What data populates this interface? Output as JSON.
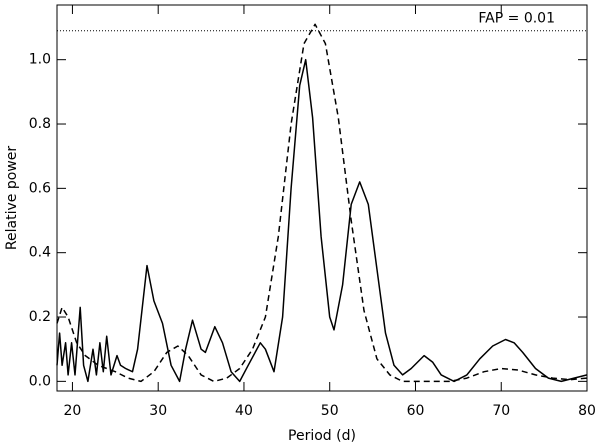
{
  "chart_data": {
    "type": "line",
    "xlabel": "Period (d)",
    "ylabel": "Relative power",
    "xlim": [
      18.2,
      80
    ],
    "ylim": [
      -0.03,
      1.17
    ],
    "xticks": [
      20,
      30,
      40,
      50,
      60,
      70,
      80
    ],
    "yticks": [
      {
        "value": 0,
        "label": "0.0"
      },
      0.2,
      0.4,
      0.6,
      0.8,
      {
        "value": 1,
        "label": "1.0"
      }
    ],
    "threshold": {
      "value": 1.09,
      "label": "FAP = 0.01",
      "style": "dotted"
    },
    "series": [
      {
        "color": "#000000",
        "style": "solid",
        "x": [
          18.2,
          18.5,
          18.8,
          19.2,
          19.5,
          19.9,
          20.3,
          20.9,
          21.3,
          21.8,
          22.4,
          22.8,
          23.2,
          23.6,
          24.0,
          24.5,
          25.2,
          25.6,
          26.2,
          27,
          27.6,
          28.7,
          29.5,
          30.5,
          31.5,
          32.5,
          33.2,
          34,
          35,
          35.5,
          36.6,
          37.5,
          38.5,
          39.5,
          40.5,
          41.9,
          42.5,
          43.5,
          44.5,
          45.5,
          46.5,
          47.2,
          48,
          49,
          50,
          50.5,
          51.5,
          52.5,
          53.5,
          54.5,
          55.5,
          56.5,
          57.5,
          58.5,
          59.5,
          61,
          62,
          63,
          64.5,
          66,
          67.5,
          69,
          70.5,
          71.5,
          72.5,
          74,
          75.5,
          77,
          78.5,
          80
        ],
        "values": [
          0.05,
          0.15,
          0.05,
          0.12,
          0.02,
          0.12,
          0.02,
          0.23,
          0.05,
          0.0,
          0.1,
          0.02,
          0.12,
          0.03,
          0.14,
          0.02,
          0.08,
          0.05,
          0.04,
          0.03,
          0.1,
          0.36,
          0.25,
          0.18,
          0.05,
          0.0,
          0.1,
          0.19,
          0.1,
          0.09,
          0.17,
          0.12,
          0.03,
          0.0,
          0.05,
          0.12,
          0.1,
          0.03,
          0.2,
          0.6,
          0.92,
          1.0,
          0.82,
          0.45,
          0.2,
          0.16,
          0.3,
          0.55,
          0.62,
          0.55,
          0.35,
          0.15,
          0.05,
          0.02,
          0.04,
          0.08,
          0.06,
          0.02,
          0.0,
          0.02,
          0.07,
          0.11,
          0.13,
          0.12,
          0.09,
          0.04,
          0.01,
          0.0,
          0.01,
          0.02
        ]
      },
      {
        "color": "#000000",
        "style": "dashed",
        "x": [
          18.2,
          18.8,
          19.5,
          20.5,
          21.5,
          23,
          25,
          26.5,
          28,
          29.5,
          31,
          32.3,
          33.5,
          35,
          36.5,
          38,
          39.5,
          41,
          42.5,
          44,
          45.5,
          47,
          48.3,
          49.5,
          51,
          52.5,
          54,
          55.5,
          57,
          58.5,
          60,
          62,
          64,
          66,
          68,
          70,
          72,
          74,
          76,
          78,
          80
        ],
        "values": [
          0.18,
          0.23,
          0.2,
          0.12,
          0.08,
          0.05,
          0.03,
          0.01,
          0.0,
          0.03,
          0.09,
          0.11,
          0.08,
          0.02,
          0.0,
          0.01,
          0.04,
          0.1,
          0.2,
          0.45,
          0.8,
          1.05,
          1.11,
          1.05,
          0.82,
          0.5,
          0.22,
          0.07,
          0.02,
          0.0,
          0.0,
          0.0,
          0.0,
          0.01,
          0.03,
          0.04,
          0.035,
          0.02,
          0.01,
          0.005,
          0.01
        ]
      }
    ]
  }
}
